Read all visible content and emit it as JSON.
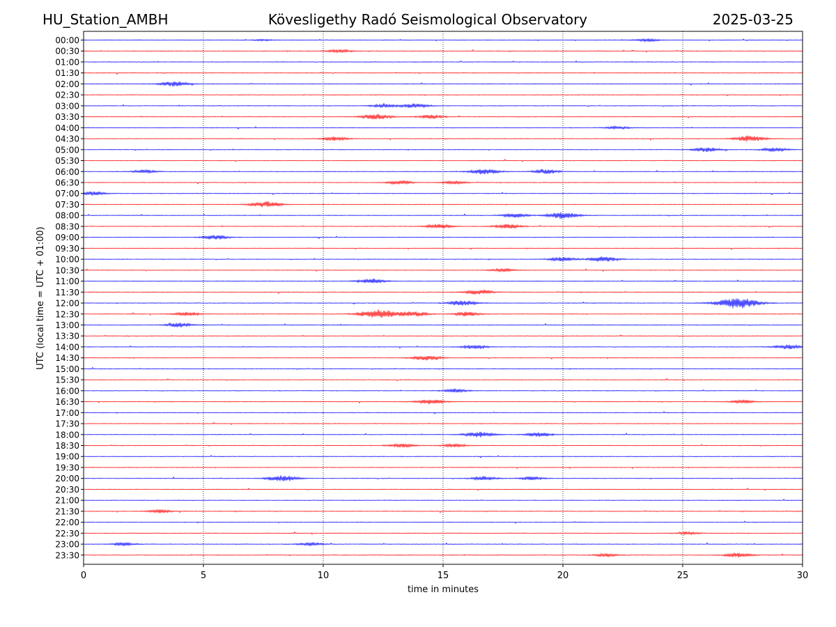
{
  "header": {
    "station": "HU_Station_AMBH",
    "observatory": "Kövesligethy Radó Seismological Observatory",
    "date": "2025-03-25"
  },
  "colors": {
    "trace_a": "#0000ff",
    "trace_b": "#ff0000",
    "grid": "#000000"
  },
  "chart_data": {
    "type": "line",
    "xlabel": "time in minutes",
    "ylabel": "UTC (local time = UTC + 01:00)",
    "xlim": [
      0,
      30
    ],
    "x_ticks": [
      "0",
      "5",
      "10",
      "15",
      "20",
      "25",
      "30"
    ],
    "grid": "vertical dotted lines at x ticks",
    "rows": [
      "00:00",
      "00:30",
      "01:00",
      "01:30",
      "02:00",
      "02:30",
      "03:00",
      "03:30",
      "04:00",
      "04:30",
      "05:00",
      "05:30",
      "06:00",
      "06:30",
      "07:00",
      "07:30",
      "08:00",
      "08:30",
      "09:00",
      "09:30",
      "10:00",
      "10:30",
      "11:00",
      "11:30",
      "12:00",
      "12:30",
      "13:00",
      "13:30",
      "14:00",
      "14:30",
      "15:00",
      "15:30",
      "16:00",
      "16:30",
      "17:00",
      "17:30",
      "18:00",
      "18:30",
      "19:00",
      "19:30",
      "20:00",
      "20:30",
      "21:00",
      "21:30",
      "22:00",
      "22:30",
      "23:00",
      "23:30"
    ],
    "row_colors": [
      "blue",
      "red"
    ],
    "events": [
      {
        "row": "00:00",
        "x": 23.5,
        "amp": 0.25
      },
      {
        "row": "00:00",
        "x": 7.5,
        "amp": 0.15
      },
      {
        "row": "00:30",
        "x": 10.7,
        "amp": 0.3
      },
      {
        "row": "02:00",
        "x": 3.8,
        "amp": 0.45
      },
      {
        "row": "03:00",
        "x": 13.8,
        "amp": 0.4
      },
      {
        "row": "03:00",
        "x": 12.5,
        "amp": 0.3
      },
      {
        "row": "03:30",
        "x": 12.2,
        "amp": 0.5
      },
      {
        "row": "03:30",
        "x": 14.5,
        "amp": 0.35
      },
      {
        "row": "04:00",
        "x": 22.3,
        "amp": 0.25
      },
      {
        "row": "04:30",
        "x": 27.8,
        "amp": 0.55
      },
      {
        "row": "04:30",
        "x": 10.5,
        "amp": 0.35
      },
      {
        "row": "05:00",
        "x": 26.0,
        "amp": 0.4
      },
      {
        "row": "05:00",
        "x": 28.8,
        "amp": 0.35
      },
      {
        "row": "06:00",
        "x": 16.7,
        "amp": 0.5
      },
      {
        "row": "06:00",
        "x": 19.3,
        "amp": 0.4
      },
      {
        "row": "06:00",
        "x": 2.5,
        "amp": 0.3
      },
      {
        "row": "06:30",
        "x": 13.2,
        "amp": 0.35
      },
      {
        "row": "06:30",
        "x": 15.5,
        "amp": 0.3
      },
      {
        "row": "07:00",
        "x": 0.4,
        "amp": 0.35
      },
      {
        "row": "07:30",
        "x": 7.6,
        "amp": 0.55
      },
      {
        "row": "08:00",
        "x": 20.0,
        "amp": 0.6
      },
      {
        "row": "08:00",
        "x": 18.0,
        "amp": 0.4
      },
      {
        "row": "08:30",
        "x": 14.8,
        "amp": 0.4
      },
      {
        "row": "08:30",
        "x": 17.7,
        "amp": 0.4
      },
      {
        "row": "09:00",
        "x": 5.5,
        "amp": 0.4
      },
      {
        "row": "10:00",
        "x": 21.7,
        "amp": 0.5
      },
      {
        "row": "10:00",
        "x": 20.0,
        "amp": 0.4
      },
      {
        "row": "10:30",
        "x": 17.5,
        "amp": 0.3
      },
      {
        "row": "11:00",
        "x": 12.0,
        "amp": 0.45
      },
      {
        "row": "11:30",
        "x": 16.5,
        "amp": 0.45
      },
      {
        "row": "12:00",
        "x": 27.3,
        "amp": 1.0
      },
      {
        "row": "12:00",
        "x": 15.8,
        "amp": 0.5
      },
      {
        "row": "12:30",
        "x": 12.3,
        "amp": 0.85
      },
      {
        "row": "12:30",
        "x": 13.8,
        "amp": 0.45
      },
      {
        "row": "12:30",
        "x": 16.0,
        "amp": 0.4
      },
      {
        "row": "12:30",
        "x": 4.3,
        "amp": 0.35
      },
      {
        "row": "13:00",
        "x": 4.0,
        "amp": 0.4
      },
      {
        "row": "14:00",
        "x": 29.4,
        "amp": 0.4
      },
      {
        "row": "14:00",
        "x": 16.3,
        "amp": 0.35
      },
      {
        "row": "14:30",
        "x": 14.3,
        "amp": 0.45
      },
      {
        "row": "16:00",
        "x": 15.5,
        "amp": 0.35
      },
      {
        "row": "16:30",
        "x": 14.5,
        "amp": 0.45
      },
      {
        "row": "16:30",
        "x": 27.5,
        "amp": 0.3
      },
      {
        "row": "18:00",
        "x": 16.5,
        "amp": 0.5
      },
      {
        "row": "18:00",
        "x": 19.0,
        "amp": 0.4
      },
      {
        "row": "18:30",
        "x": 13.3,
        "amp": 0.35
      },
      {
        "row": "18:30",
        "x": 15.5,
        "amp": 0.3
      },
      {
        "row": "20:00",
        "x": 8.3,
        "amp": 0.55
      },
      {
        "row": "20:00",
        "x": 16.7,
        "amp": 0.35
      },
      {
        "row": "20:00",
        "x": 18.7,
        "amp": 0.3
      },
      {
        "row": "21:30",
        "x": 3.2,
        "amp": 0.3
      },
      {
        "row": "22:30",
        "x": 25.2,
        "amp": 0.25
      },
      {
        "row": "23:00",
        "x": 1.7,
        "amp": 0.3
      },
      {
        "row": "23:00",
        "x": 9.5,
        "amp": 0.3
      },
      {
        "row": "23:30",
        "x": 27.3,
        "amp": 0.4
      },
      {
        "row": "23:30",
        "x": 21.8,
        "amp": 0.3
      }
    ]
  }
}
